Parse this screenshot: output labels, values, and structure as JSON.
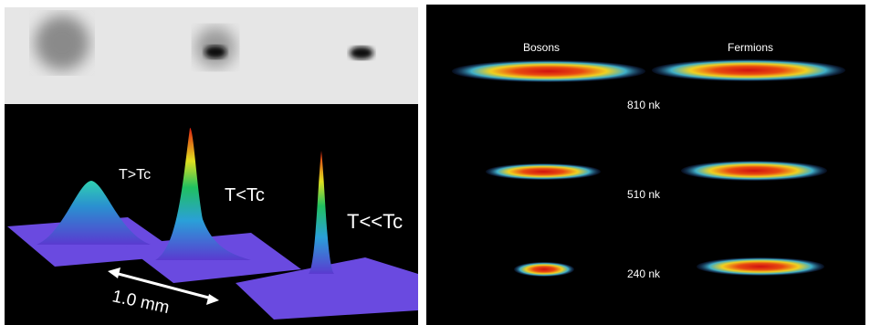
{
  "left_panel": {
    "labels": [
      "T>Tc",
      "T<Tc",
      "T<<Tc"
    ],
    "scale_label": "1.0 mm"
  },
  "right_panel": {
    "column_labels": [
      "Bosons",
      "Fermions"
    ],
    "temperatures": [
      "810 nk",
      "510 nk",
      "240 nk"
    ]
  }
}
